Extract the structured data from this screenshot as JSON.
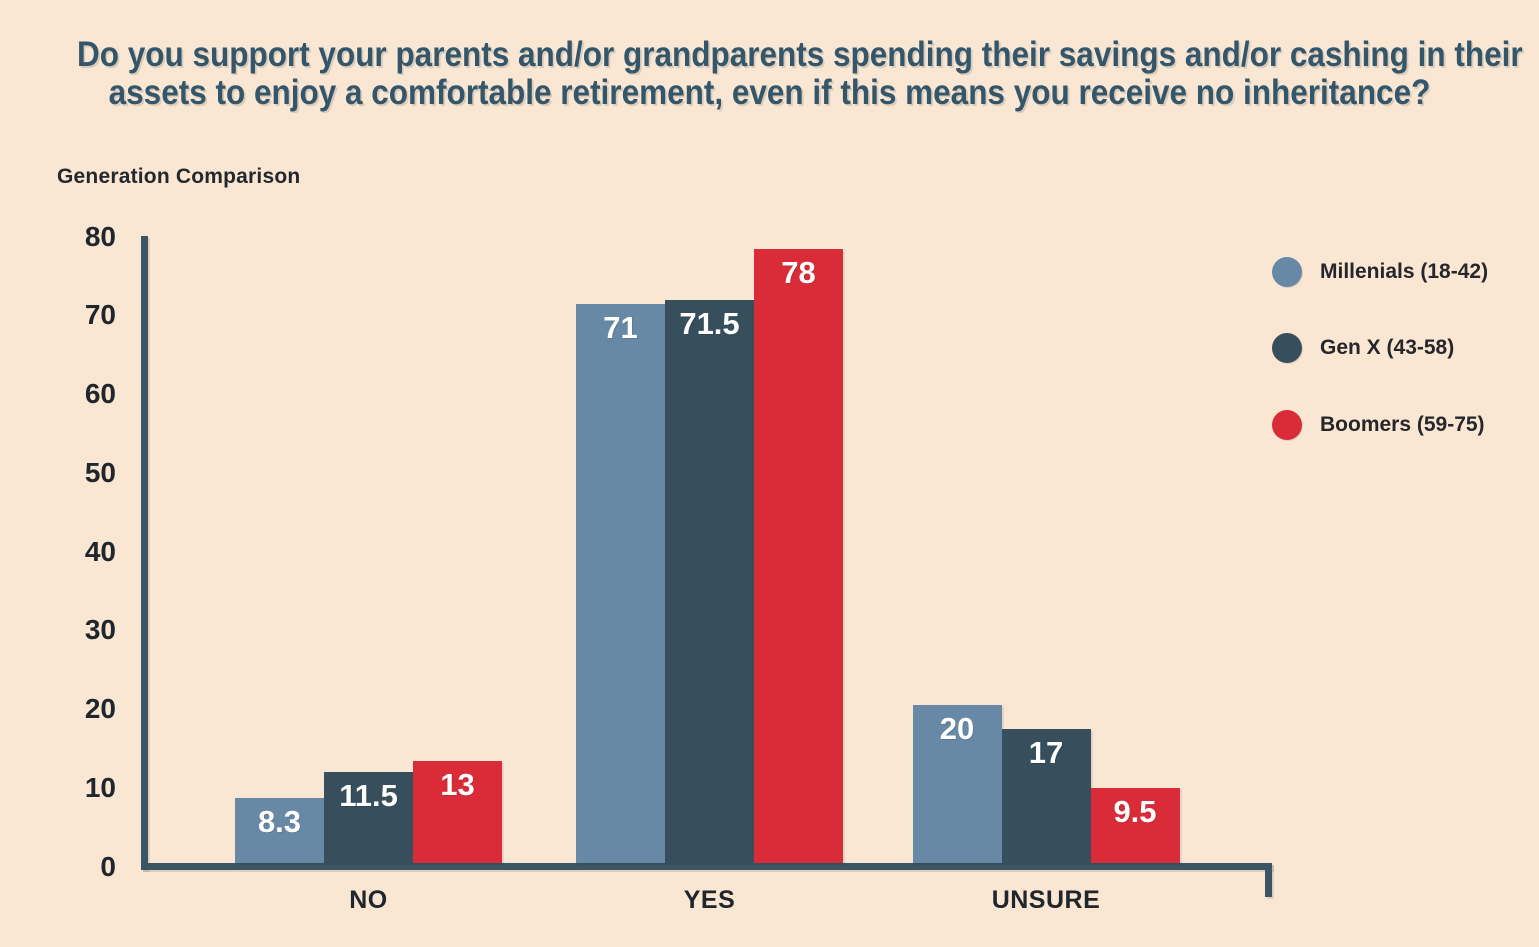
{
  "header": {
    "title_lines": [
      "Do you support your parents and/or grandparents spending their savings and/or cashing in their",
      "assets to enjoy a comfortable retirement, even if this means you receive no inheritance?"
    ],
    "subtitle": "Generation Comparison"
  },
  "chart_data": {
    "type": "bar",
    "title": "Do you support your parents and/or grandparents spending their savings and/or cashing in their assets to enjoy a comfortable retirement, even if this means you receive no inheritance?",
    "subtitle": "Generation Comparison",
    "categories": [
      "NO",
      "YES",
      "UNSURE"
    ],
    "series": [
      {
        "name": "Millenials (18-42)",
        "color": "#6889a6",
        "values": [
          8.3,
          71,
          20
        ]
      },
      {
        "name": "Gen X (43-58)",
        "color": "#374e5c",
        "values": [
          11.5,
          71.5,
          17
        ]
      },
      {
        "name": "Boomers (59-75)",
        "color": "#d92c38",
        "values": [
          13,
          78,
          9.5
        ]
      }
    ],
    "ylim": [
      0,
      80
    ],
    "yticks": [
      0,
      10,
      20,
      30,
      40,
      50,
      60,
      70,
      80
    ],
    "grid": false,
    "legend_position": "right",
    "colors": {
      "background": "#f9e7d4",
      "axis": "#3a5565",
      "tick_text": "#20262b",
      "category_text": "#20262b",
      "value_text": "#ffffff",
      "title_text": "#33566a"
    }
  }
}
